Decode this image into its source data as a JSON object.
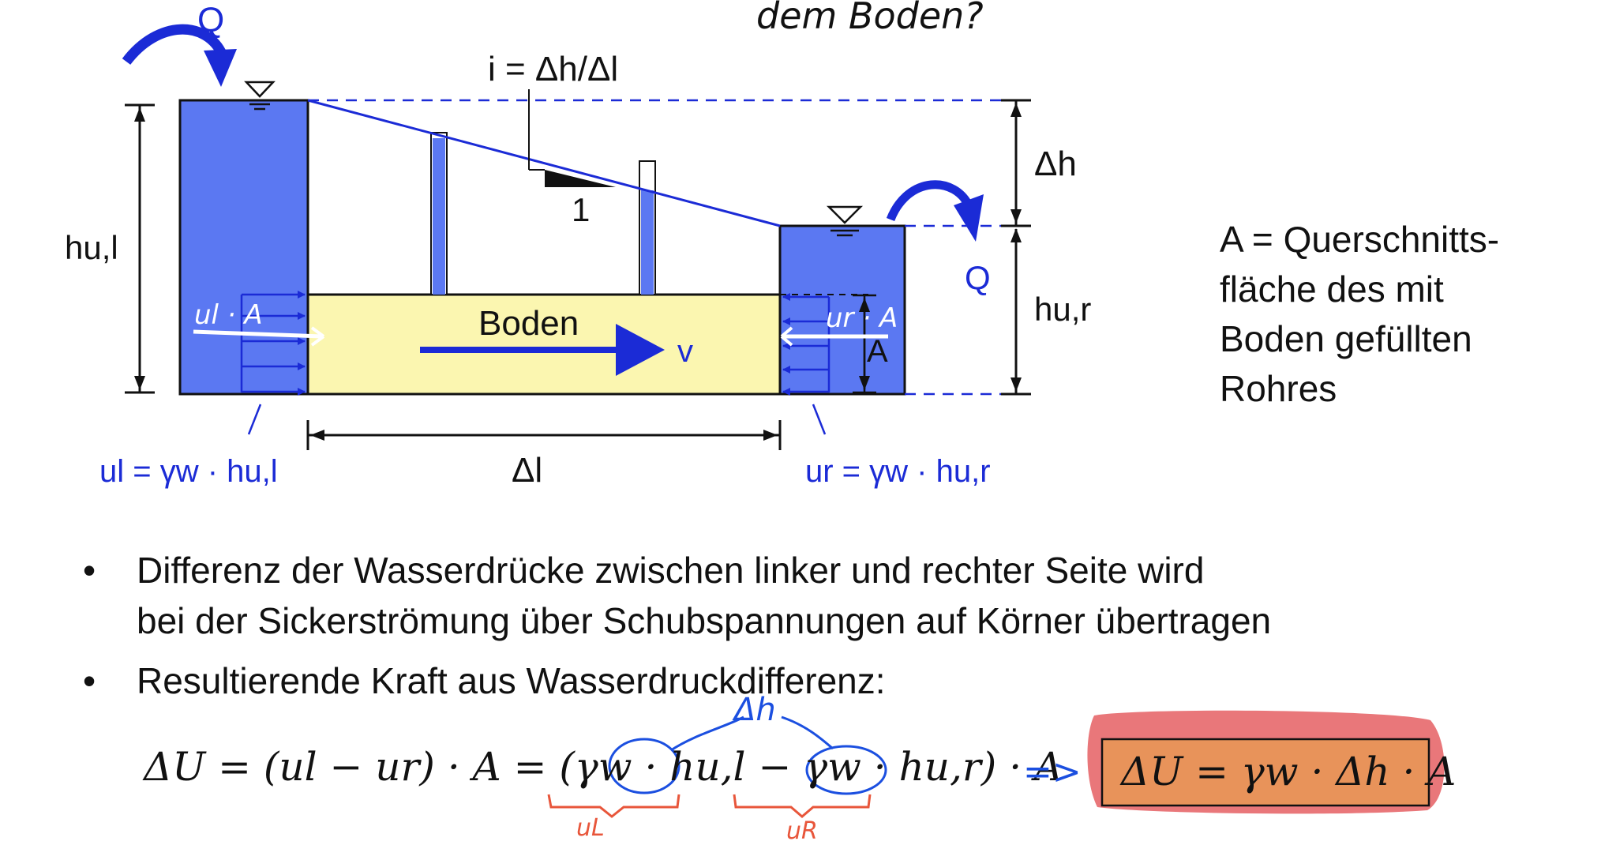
{
  "diagram": {
    "flow_top": "Q",
    "flow_right": "Q",
    "gradient": "i = Δh/Δl",
    "slope_unit": "1",
    "delta_h": "Δh",
    "h_left": "hu,l",
    "h_right": "hu,r",
    "soil": "Boden",
    "velocity": "v",
    "area": "A",
    "delta_l": "Δl",
    "u_left_formula": "ul = γw · hu,l",
    "u_right_formula": "ur = γw · hu,r"
  },
  "handwritten": {
    "top_note": "dem Boden?",
    "left_force": "ul · A",
    "right_force": "ur · A",
    "delta_h": "Δh",
    "brace_left": "uL",
    "brace_right": "uR"
  },
  "note": {
    "lines": [
      "A = Querschnitts-",
      "fläche des mit",
      "Boden gefüllten",
      "Rohres"
    ]
  },
  "bullets": [
    {
      "lines": [
        "Differenz der Wasserdrücke zwischen linker und rechter Seite wird",
        "bei der Sickerströmung über Schubspannungen auf Körner übertragen"
      ]
    },
    {
      "lines": [
        "Resultierende Kraft aus Wasserdruckdifferenz:"
      ]
    }
  ],
  "bullet_symbol": "•",
  "equation": {
    "main": "ΔU = (ul − ur) · A = (γw · hu,l − γw · hu,r) · A",
    "arrow": "=>",
    "result": "ΔU = γw · Δh · A"
  },
  "colors": {
    "water": "#5b78f2",
    "soil": "#fbf6b0",
    "annotation_blue": "#1b2bd6",
    "marker_red": "#e8563b",
    "result_box": "#e8935a",
    "result_highlight": "#e9777a"
  }
}
